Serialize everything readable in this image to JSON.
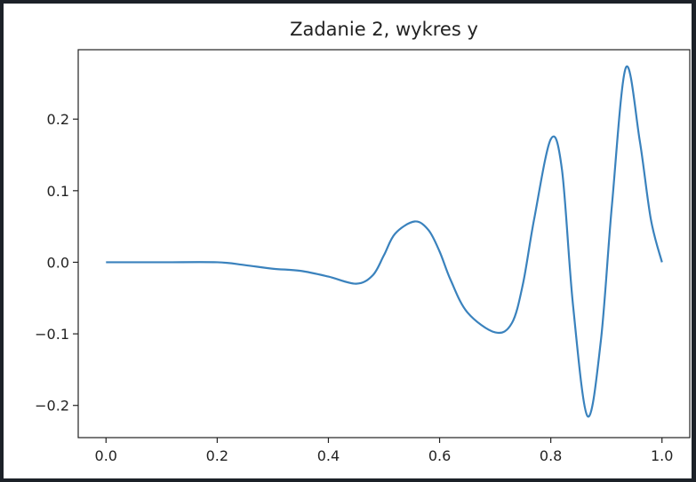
{
  "chart_data": {
    "type": "line",
    "title": "Zadanie 2, wykres y",
    "xlabel": "",
    "ylabel": "",
    "xlim": [
      -0.05,
      1.05
    ],
    "ylim": [
      -0.245,
      0.297
    ],
    "grid": false,
    "legend": null,
    "x_ticks": [
      "0.0",
      "0.2",
      "0.4",
      "0.6",
      "0.8",
      "1.0"
    ],
    "y_ticks": [
      "0.2",
      "0.1",
      "0.0",
      "−0.1",
      "−0.2"
    ],
    "series": [
      {
        "color": "#3a82bd",
        "x": [
          0.0,
          0.1,
          0.2,
          0.25,
          0.3,
          0.35,
          0.4,
          0.45,
          0.48,
          0.5,
          0.52,
          0.555,
          0.58,
          0.6,
          0.62,
          0.65,
          0.7,
          0.73,
          0.75,
          0.77,
          0.8,
          0.82,
          0.84,
          0.866,
          0.89,
          0.91,
          0.935,
          0.96,
          0.98,
          1.0
        ],
        "y": [
          0.0,
          0.0,
          0.0,
          -0.004,
          -0.009,
          -0.012,
          -0.02,
          -0.03,
          -0.018,
          0.01,
          0.04,
          0.057,
          0.045,
          0.015,
          -0.025,
          -0.07,
          -0.098,
          -0.085,
          -0.03,
          0.06,
          0.172,
          0.13,
          -0.06,
          -0.215,
          -0.11,
          0.08,
          0.272,
          0.17,
          0.06,
          0.0
        ]
      }
    ]
  }
}
